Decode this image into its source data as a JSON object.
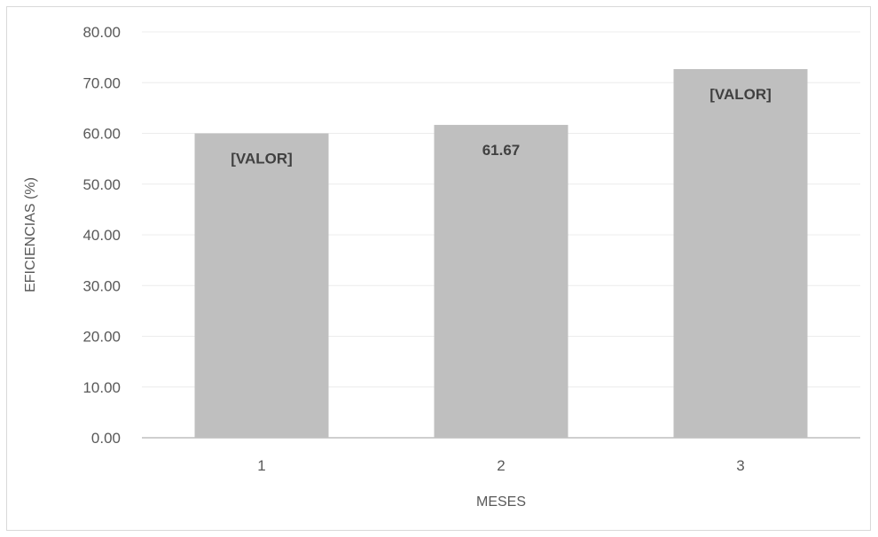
{
  "chart_data": {
    "type": "bar",
    "title": "",
    "xlabel": "MESES",
    "ylabel": "EFICIENCIAS (%)",
    "categories": [
      "1",
      "2",
      "3"
    ],
    "values": [
      60.0,
      61.67,
      72.67
    ],
    "data_labels": [
      "[VALOR]",
      "61.67",
      "[VALOR]"
    ],
    "ylim": [
      0,
      80
    ],
    "yticks": [
      "0.00",
      "10.00",
      "20.00",
      "30.00",
      "40.00",
      "50.00",
      "60.00",
      "70.00",
      "80.00"
    ],
    "ytick_values": [
      0,
      10,
      20,
      30,
      40,
      50,
      60,
      70,
      80
    ],
    "grid": true,
    "legend": "none",
    "bar_color": "#bfbfbf",
    "gridline_color": "#ececec",
    "axis_color": "#bfbfbf",
    "text_color": "#595959"
  }
}
